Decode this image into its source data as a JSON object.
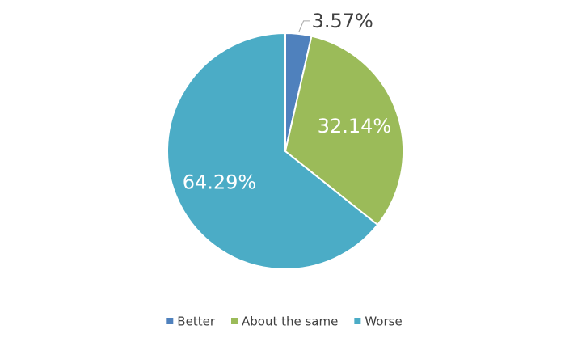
{
  "chart_data": {
    "type": "pie",
    "categories": [
      "Better",
      "About the same",
      "Worse"
    ],
    "values": [
      3.57,
      32.14,
      64.29
    ],
    "value_labels": [
      "3.57%",
      "32.14%",
      "64.29%"
    ],
    "colors": [
      "#4f81bd",
      "#9bbb59",
      "#4bacc6"
    ],
    "legend": "bottom"
  }
}
